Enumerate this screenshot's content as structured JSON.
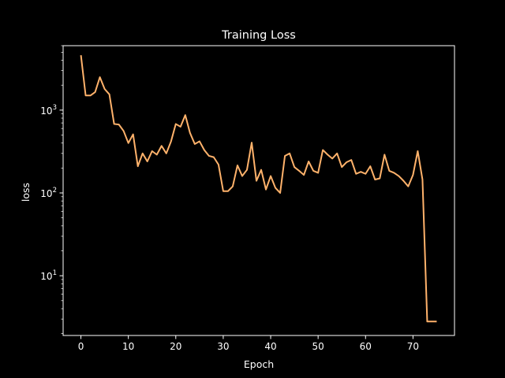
{
  "chart_data": {
    "type": "line",
    "title": "Training Loss",
    "xlabel": "Epoch",
    "ylabel": "loss",
    "yscale": "log",
    "xlim": [
      -3.75,
      78.75
    ],
    "ylim": [
      1.9,
      6000
    ],
    "x_ticks": [
      0,
      10,
      20,
      30,
      40,
      50,
      60,
      70
    ],
    "y_ticks": [
      {
        "value": 10,
        "base": "10",
        "exp": "1"
      },
      {
        "value": 100,
        "base": "10",
        "exp": "2"
      },
      {
        "value": 1000,
        "base": "10",
        "exp": "3"
      }
    ],
    "grid": false,
    "background_color": "#000000",
    "axes_color": "#ffffff",
    "series": [
      {
        "color": "#ffb26b",
        "x": [
          0,
          1,
          2,
          3,
          4,
          5,
          6,
          7,
          8,
          9,
          10,
          11,
          12,
          13,
          14,
          15,
          16,
          17,
          18,
          19,
          20,
          21,
          22,
          23,
          24,
          25,
          26,
          27,
          28,
          29,
          30,
          31,
          32,
          33,
          34,
          35,
          36,
          37,
          38,
          39,
          40,
          41,
          42,
          43,
          44,
          45,
          46,
          47,
          48,
          49,
          50,
          51,
          52,
          53,
          54,
          55,
          56,
          57,
          58,
          59,
          60,
          61,
          62,
          63,
          64,
          65,
          66,
          67,
          68,
          69,
          70,
          71,
          72,
          73,
          74,
          75
        ],
        "values": [
          4600,
          1500,
          1500,
          1650,
          2500,
          1800,
          1550,
          680,
          670,
          560,
          400,
          510,
          210,
          300,
          240,
          320,
          290,
          370,
          300,
          420,
          680,
          630,
          870,
          530,
          390,
          420,
          330,
          280,
          270,
          220,
          105,
          105,
          120,
          215,
          160,
          190,
          405,
          140,
          190,
          110,
          160,
          115,
          100,
          280,
          300,
          205,
          185,
          165,
          240,
          185,
          175,
          330,
          290,
          260,
          300,
          205,
          235,
          250,
          170,
          180,
          170,
          210,
          145,
          150,
          290,
          185,
          175,
          160,
          140,
          120,
          165,
          320,
          145,
          2.8,
          2.8,
          2.8
        ]
      }
    ]
  }
}
